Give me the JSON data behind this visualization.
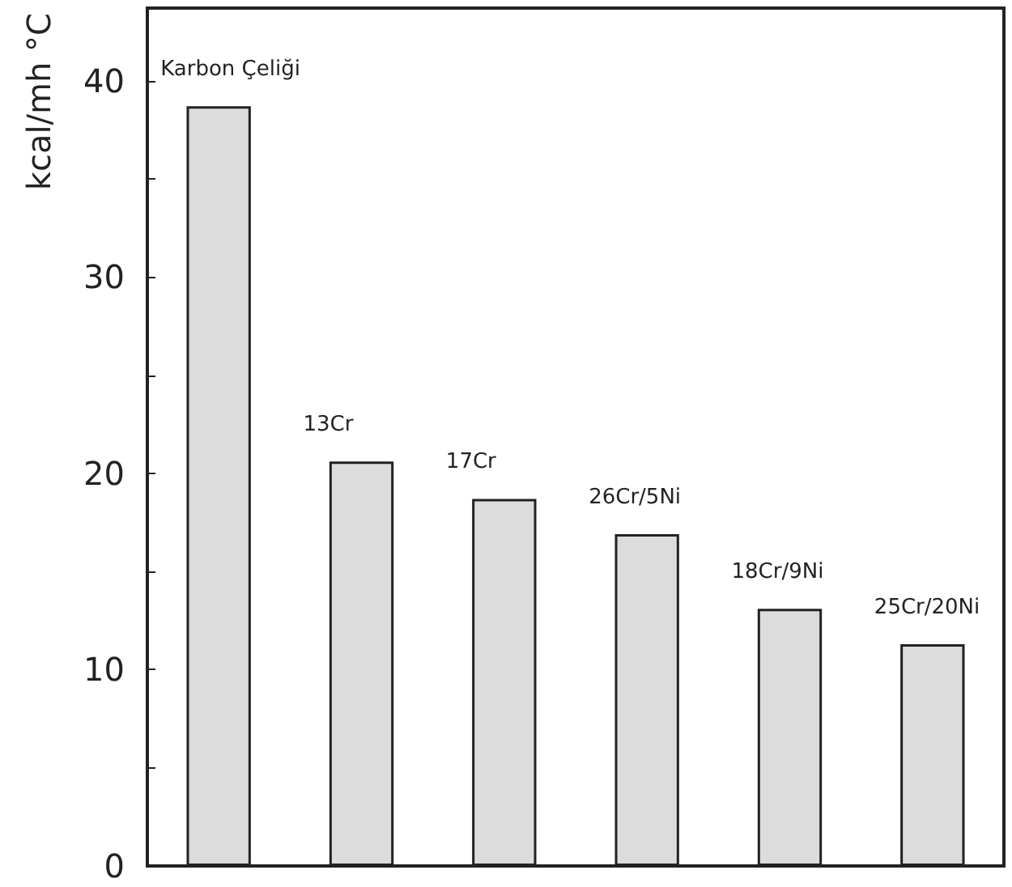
{
  "chart_data": {
    "type": "bar",
    "ylabel": "kcal/mh °C",
    "categories": [
      "Karbon Çeliği",
      "13Cr",
      "17Cr",
      "26Cr/5Ni",
      "18Cr/9Ni",
      "25Cr/20Ni"
    ],
    "values": [
      38.7,
      20.6,
      18.7,
      16.9,
      13.1,
      11.3
    ],
    "color": "#dcdcdc",
    "ylim": [
      0,
      43.7
    ],
    "yticks": [
      0,
      {
        "value": 5,
        "label": null
      },
      10,
      {
        "value": 15,
        "label": null
      },
      20,
      {
        "value": 25,
        "label": null
      },
      30,
      {
        "value": 35,
        "label": null
      },
      40
    ],
    "grid": false
  }
}
